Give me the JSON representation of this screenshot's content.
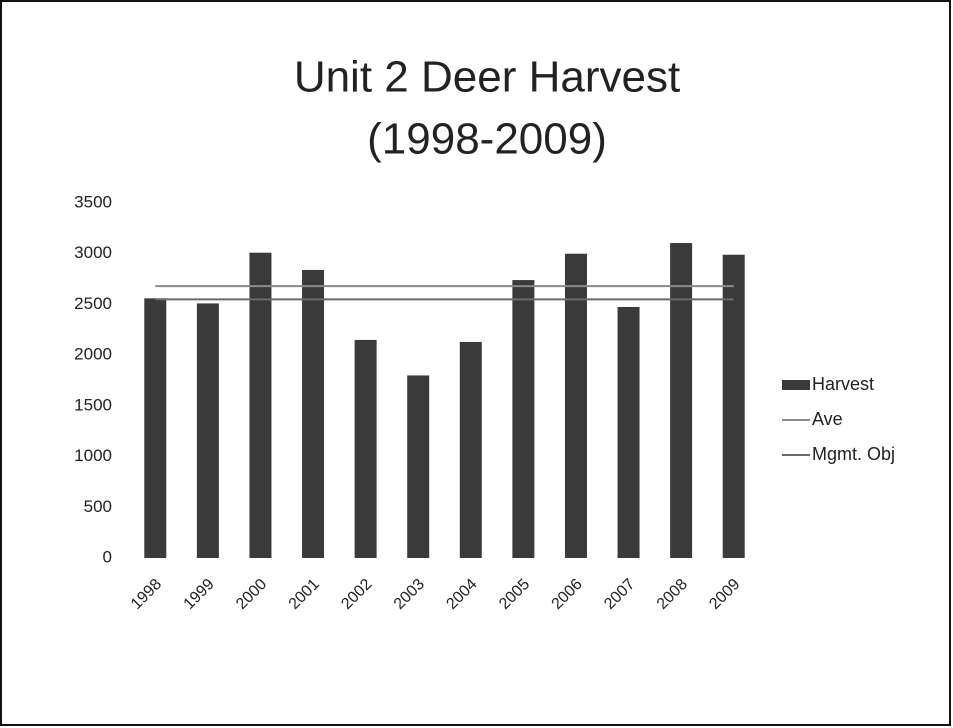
{
  "chart_data": {
    "type": "bar",
    "title": [
      "Unit 2 Deer Harvest",
      "(1998-2009)"
    ],
    "categories": [
      "1998",
      "1999",
      "2000",
      "2001",
      "2002",
      "2003",
      "2004",
      "2005",
      "2006",
      "2007",
      "2008",
      "2009"
    ],
    "series": [
      {
        "name": "Harvest",
        "type": "bar",
        "color": "#3a3a3a",
        "values": [
          2560,
          2510,
          3010,
          2840,
          2150,
          1800,
          2130,
          2740,
          3000,
          2475,
          3105,
          2990
        ]
      },
      {
        "name": "Ave",
        "type": "line",
        "color": "#8a8a8a",
        "values": [
          2680,
          2680,
          2680,
          2680,
          2680,
          2680,
          2680,
          2680,
          2680,
          2680,
          2680,
          2680
        ]
      },
      {
        "name": "Mgmt. Obj",
        "type": "line",
        "color": "#6a6a6a",
        "values": [
          2550,
          2550,
          2550,
          2550,
          2550,
          2550,
          2550,
          2550,
          2550,
          2550,
          2550,
          2550
        ]
      }
    ],
    "ylim": [
      0,
      3500
    ],
    "yticks": [
      0,
      500,
      1000,
      1500,
      2000,
      2500,
      3000,
      3500
    ],
    "grid": false,
    "legend": "right"
  }
}
